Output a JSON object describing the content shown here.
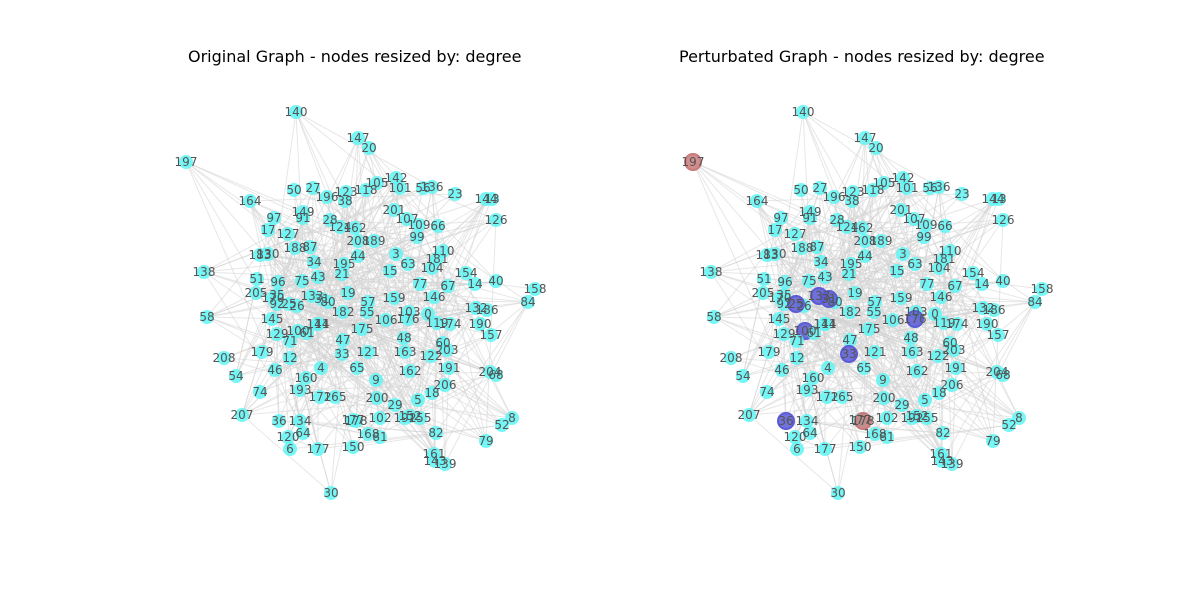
{
  "figure": {
    "panels": [
      {
        "id": "original",
        "title": "Original Graph - nodes resized by: degree",
        "highlight": {}
      },
      {
        "id": "perturbated",
        "title": "Perturbated Graph - nodes resized by: degree",
        "highlight": {
          "197": "#c97a7a",
          "36": "#5b5bd6",
          "25": "#5b5bd6",
          "133": "#5b5bd6",
          "100": "#5b5bd6",
          "33": "#5b5bd6",
          "31": "#5b5bd6",
          "176": "#5b5bd6",
          "178": "#c97a7a"
        }
      }
    ],
    "colors": {
      "node": "#5ff5f5",
      "node_edge": "#5ff5f5",
      "edge": "#d3d3d3",
      "label": "#555555"
    },
    "nodes": [
      {
        "label": "140"
      },
      {
        "label": "147"
      },
      {
        "label": "20"
      },
      {
        "label": "197"
      },
      {
        "label": "164"
      },
      {
        "label": "50"
      },
      {
        "label": "27"
      },
      {
        "label": "196"
      },
      {
        "label": "38"
      },
      {
        "label": "123"
      },
      {
        "label": "118"
      },
      {
        "label": "105"
      },
      {
        "label": "142"
      },
      {
        "label": "101"
      },
      {
        "label": "56"
      },
      {
        "label": "136"
      },
      {
        "label": "23"
      },
      {
        "label": "144"
      },
      {
        "label": "13"
      },
      {
        "label": "126"
      },
      {
        "label": "97"
      },
      {
        "label": "149"
      },
      {
        "label": "91"
      },
      {
        "label": "28"
      },
      {
        "label": "124"
      },
      {
        "label": "162"
      },
      {
        "label": "201"
      },
      {
        "label": "107"
      },
      {
        "label": "109"
      },
      {
        "label": "66"
      },
      {
        "label": "17"
      },
      {
        "label": "127"
      },
      {
        "label": "188"
      },
      {
        "label": "87"
      },
      {
        "label": "208"
      },
      {
        "label": "189"
      },
      {
        "label": "99"
      },
      {
        "label": "183"
      },
      {
        "label": "130"
      },
      {
        "label": "3"
      },
      {
        "label": "110"
      },
      {
        "label": "181"
      },
      {
        "label": "138"
      },
      {
        "label": "34"
      },
      {
        "label": "195"
      },
      {
        "label": "44"
      },
      {
        "label": "15"
      },
      {
        "label": "63"
      },
      {
        "label": "104"
      },
      {
        "label": "154"
      },
      {
        "label": "40"
      },
      {
        "label": "158"
      },
      {
        "label": "205"
      },
      {
        "label": "51"
      },
      {
        "label": "75"
      },
      {
        "label": "43"
      },
      {
        "label": "21"
      },
      {
        "label": "77"
      },
      {
        "label": "67"
      },
      {
        "label": "14"
      },
      {
        "label": "84"
      },
      {
        "label": "96"
      },
      {
        "label": "35"
      },
      {
        "label": "133"
      },
      {
        "label": "80"
      },
      {
        "label": "19"
      },
      {
        "label": "57"
      },
      {
        "label": "159"
      },
      {
        "label": "146"
      },
      {
        "label": "132"
      },
      {
        "label": "186"
      },
      {
        "label": "58"
      },
      {
        "label": "170"
      },
      {
        "label": "92"
      },
      {
        "label": "26"
      },
      {
        "label": "182"
      },
      {
        "label": "55"
      },
      {
        "label": "103"
      },
      {
        "label": "0"
      },
      {
        "label": "145"
      },
      {
        "label": "100"
      },
      {
        "label": "114"
      },
      {
        "label": "175"
      },
      {
        "label": "106"
      },
      {
        "label": "174"
      },
      {
        "label": "190"
      },
      {
        "label": "157"
      },
      {
        "label": "129"
      },
      {
        "label": "71"
      },
      {
        "label": "47"
      },
      {
        "label": "48"
      },
      {
        "label": "60"
      },
      {
        "label": "203"
      },
      {
        "label": "208"
      },
      {
        "label": "179"
      },
      {
        "label": "12"
      },
      {
        "label": "33"
      },
      {
        "label": "121"
      },
      {
        "label": "163"
      },
      {
        "label": "122"
      },
      {
        "label": "54"
      },
      {
        "label": "46"
      },
      {
        "label": "4"
      },
      {
        "label": "65"
      },
      {
        "label": "162"
      },
      {
        "label": "191"
      },
      {
        "label": "204"
      },
      {
        "label": "68"
      },
      {
        "label": "160"
      },
      {
        "label": "74"
      },
      {
        "label": "193"
      },
      {
        "label": "172"
      },
      {
        "label": "165"
      },
      {
        "label": "9"
      },
      {
        "label": "206"
      },
      {
        "label": "18"
      },
      {
        "label": "200"
      },
      {
        "label": "29"
      },
      {
        "label": "5"
      },
      {
        "label": "207"
      },
      {
        "label": "102"
      },
      {
        "label": "177"
      },
      {
        "label": "152"
      },
      {
        "label": "8"
      },
      {
        "label": "36"
      },
      {
        "label": "134"
      },
      {
        "label": "178"
      },
      {
        "label": "52"
      },
      {
        "label": "120"
      },
      {
        "label": "64"
      },
      {
        "label": "168"
      },
      {
        "label": "81"
      },
      {
        "label": "82"
      },
      {
        "label": "79"
      },
      {
        "label": "6"
      },
      {
        "label": "177"
      },
      {
        "label": "150"
      },
      {
        "label": "161"
      },
      {
        "label": "143"
      },
      {
        "label": "139"
      },
      {
        "label": "30"
      },
      {
        "label": "31"
      },
      {
        "label": "176"
      },
      {
        "label": "25"
      },
      {
        "label": "141"
      },
      {
        "label": "155"
      },
      {
        "label": "192"
      },
      {
        "label": "119"
      },
      {
        "label": "61"
      }
    ]
  }
}
